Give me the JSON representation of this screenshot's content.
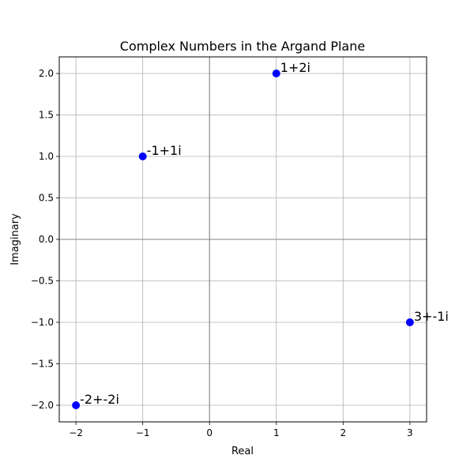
{
  "chart_data": {
    "type": "scatter",
    "title": "Complex Numbers in the Argand Plane",
    "xlabel": "Real",
    "ylabel": "Imaginary",
    "xlim": [
      -2.25,
      3.25
    ],
    "ylim": [
      -2.2,
      2.2
    ],
    "xticks": [
      -2,
      -1,
      0,
      1,
      2,
      3
    ],
    "xtick_labels": [
      "−2",
      "−1",
      "0",
      "1",
      "2",
      "3"
    ],
    "yticks": [
      -2.0,
      -1.5,
      -1.0,
      -0.5,
      0.0,
      0.5,
      1.0,
      1.5,
      2.0
    ],
    "ytick_labels": [
      "−2.0",
      "−1.5",
      "−1.0",
      "−0.5",
      "0.0",
      "0.5",
      "1.0",
      "1.5",
      "2.0"
    ],
    "grid": true,
    "marker_color": "#0000ff",
    "axhline_y": 0,
    "axvline_x": 0,
    "axline_color": "#808080",
    "points": [
      {
        "x": 1,
        "y": 2,
        "label": "1+2i"
      },
      {
        "x": -1,
        "y": 1,
        "label": "-1+1i"
      },
      {
        "x": 3,
        "y": -1,
        "label": "3+-1i"
      },
      {
        "x": -2,
        "y": -2,
        "label": "-2+-2i"
      }
    ]
  }
}
